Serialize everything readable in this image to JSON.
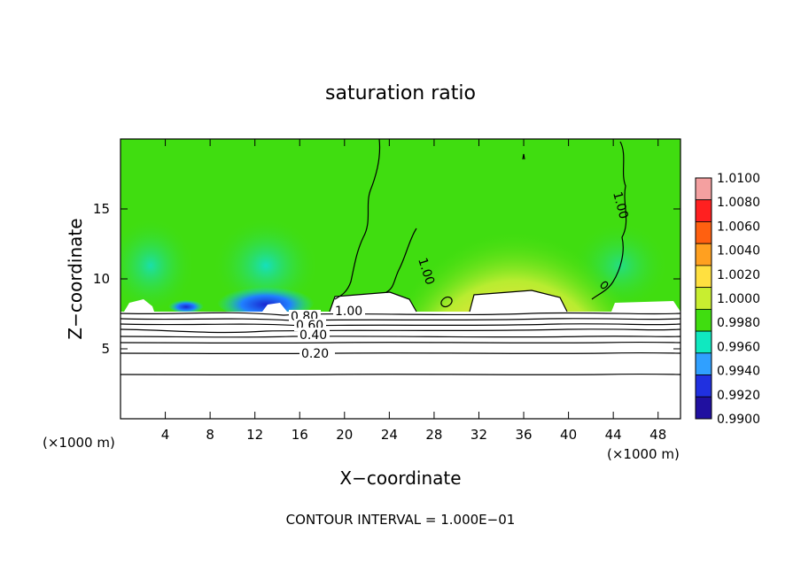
{
  "chart_data": {
    "type": "heatmap",
    "title": "saturation ratio",
    "xlabel": "X−coordinate",
    "ylabel": "Z−coordinate",
    "x_unit_left": "(×1000 m)",
    "x_unit_right": "(×1000 m)",
    "xlim": [
      0,
      50
    ],
    "ylim": [
      0,
      20
    ],
    "x_ticks": [
      4,
      8,
      12,
      16,
      20,
      24,
      28,
      32,
      36,
      40,
      44,
      48
    ],
    "y_ticks": [
      5,
      10,
      15
    ],
    "footer": "CONTOUR INTERVAL = 1.000E−01",
    "colorbar": {
      "labels": [
        "1.0100",
        "1.0080",
        "1.0060",
        "1.0040",
        "1.0020",
        "1.0000",
        "0.9980",
        "0.9960",
        "0.9940",
        "0.9920",
        "0.9900"
      ],
      "colors": [
        "#f4a0a0",
        "#ff2020",
        "#ff6010",
        "#ffa020",
        "#ffe040",
        "#c8ee30",
        "#40dd10",
        "#10e8c0",
        "#30a0ff",
        "#2030e0",
        "#2010a0",
        "#501080"
      ]
    },
    "contour_labels": [
      "1.00",
      "1.00",
      "1.00",
      "0.80",
      "0.60",
      "0.40",
      "0.20"
    ]
  }
}
